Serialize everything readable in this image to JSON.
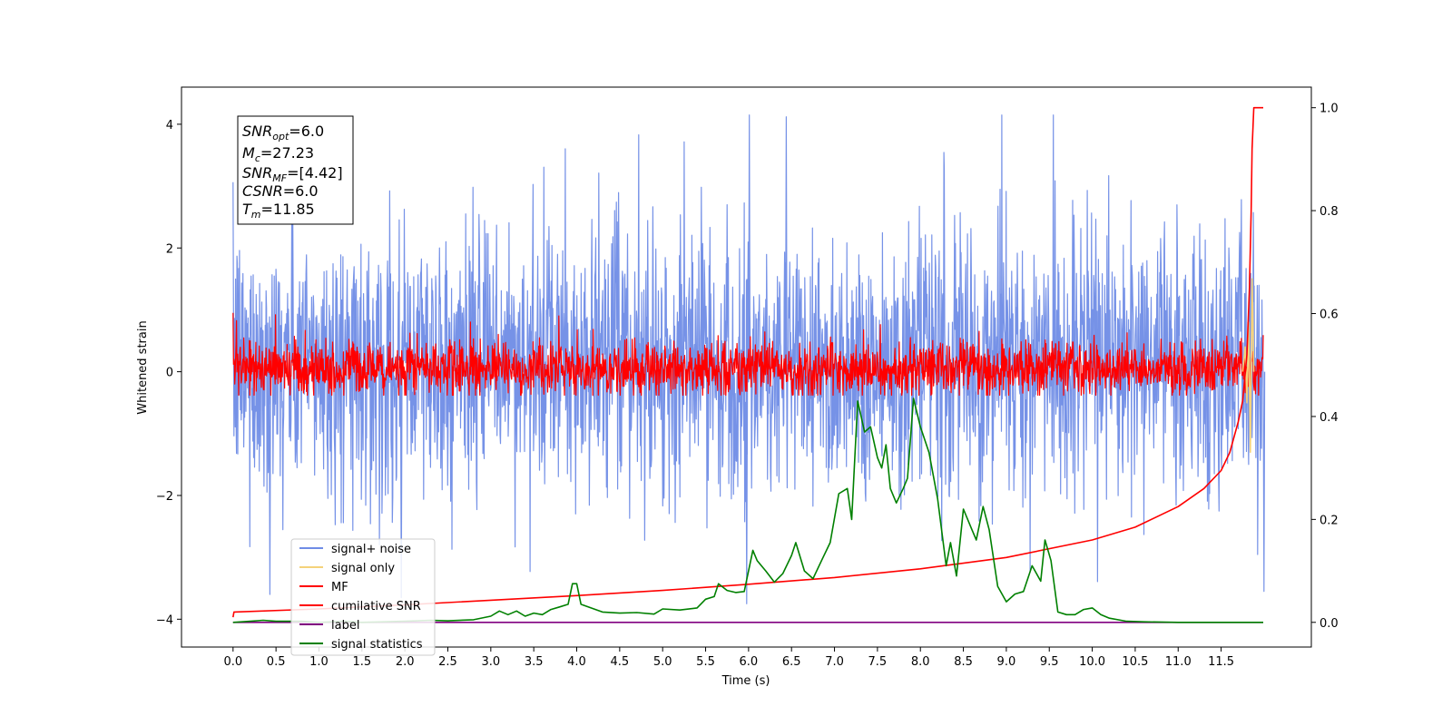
{
  "chart_data": {
    "type": "line",
    "xlabel": "Time (s)",
    "ylabel": "Whitened strain",
    "xlim": [
      -0.6,
      12.55
    ],
    "ylim": [
      -4.45,
      4.6
    ],
    "y2lim": [
      -0.048,
      1.04
    ],
    "x_ticks": [
      0.0,
      0.5,
      1.0,
      1.5,
      2.0,
      2.5,
      3.0,
      3.5,
      4.0,
      4.5,
      5.0,
      5.5,
      6.0,
      6.5,
      7.0,
      7.5,
      8.0,
      8.5,
      9.0,
      9.5,
      10.0,
      10.5,
      11.0,
      11.5
    ],
    "x_tick_labels": [
      "0.0",
      "0.5",
      "1.0",
      "1.5",
      "2.0",
      "2.5",
      "3.0",
      "3.5",
      "4.0",
      "4.5",
      "5.0",
      "5.5",
      "6.0",
      "6.5",
      "7.0",
      "7.5",
      "8.0",
      "8.5",
      "9.0",
      "9.5",
      "10.0",
      "10.5",
      "11.0",
      "11.5"
    ],
    "y_ticks": [
      -4,
      -2,
      0,
      2,
      4
    ],
    "y_tick_labels": [
      "−4",
      "−2",
      "0",
      "2",
      "4"
    ],
    "y2_ticks": [
      0.0,
      0.2,
      0.4,
      0.6,
      0.8,
      1.0
    ],
    "y2_tick_labels": [
      "0.0",
      "0.2",
      "0.4",
      "0.6",
      "0.8",
      "1.0"
    ],
    "grid": false,
    "legend_position": "lower-left",
    "annotation": {
      "lines": [
        {
          "base": "SNR",
          "sub": "opt",
          "value": "=6.0"
        },
        {
          "base": "M",
          "sub": "c",
          "value": "=27.23"
        },
        {
          "base": "SNR",
          "sub": "MF",
          "value": "=[4.42]"
        },
        {
          "base": "CSNR",
          "sub": "",
          "value": "=6.0"
        },
        {
          "base": "T",
          "sub": "m",
          "value": "=11.85"
        }
      ]
    },
    "series": [
      {
        "name": "signal+ noise",
        "color": "#6f8ce6",
        "axis": "left",
        "x_range": [
          0.0,
          11.99
        ],
        "typical_range": [
          -1.5,
          1.8
        ],
        "extremes": [
          [
            0.42,
            -3.6
          ],
          [
            1.95,
            -3.65
          ],
          [
            6.0,
            4.15
          ],
          [
            6.43,
            4.12
          ],
          [
            5.97,
            -3.75
          ],
          [
            11.99,
            -3.55
          ]
        ]
      },
      {
        "name": "signal only",
        "color": "#f5d27a",
        "axis": "left",
        "x": [
          11.75,
          11.78,
          11.8,
          11.82,
          11.84,
          11.86,
          11.88
        ],
        "y": [
          0.0,
          0.4,
          -0.5,
          0.8,
          -1.3,
          1.5,
          0.0
        ]
      },
      {
        "name": "MF",
        "color": "#ff0000",
        "axis": "left",
        "x_range": [
          0.0,
          11.99
        ],
        "typical_range": [
          -0.35,
          0.55
        ],
        "start_value": 0.95
      },
      {
        "name": "cumilative SNR",
        "color": "#ff0000",
        "axis": "right",
        "x": [
          0.0,
          0.01,
          1.0,
          2.0,
          3.0,
          4.0,
          5.0,
          6.0,
          7.0,
          8.0,
          9.0,
          10.0,
          10.5,
          11.0,
          11.3,
          11.5,
          11.6,
          11.7,
          11.75,
          11.8,
          11.83,
          11.85,
          11.86,
          11.88,
          11.9,
          11.95,
          11.99
        ],
        "y": [
          0.01,
          0.02,
          0.026,
          0.034,
          0.043,
          0.052,
          0.062,
          0.074,
          0.087,
          0.104,
          0.126,
          0.16,
          0.185,
          0.225,
          0.26,
          0.295,
          0.33,
          0.39,
          0.43,
          0.52,
          0.65,
          0.8,
          0.92,
          1.0,
          1.0,
          1.0,
          1.0
        ]
      },
      {
        "name": "label",
        "color": "#800080",
        "axis": "right",
        "x": [
          0.0,
          11.99
        ],
        "y": [
          0.0,
          0.0
        ]
      },
      {
        "name": "signal statistics",
        "color": "#008000",
        "axis": "right",
        "x": [
          0.0,
          0.2,
          0.35,
          0.5,
          0.8,
          1.0,
          1.3,
          1.5,
          2.0,
          2.3,
          2.5,
          2.8,
          3.0,
          3.1,
          3.2,
          3.3,
          3.4,
          3.5,
          3.6,
          3.7,
          3.8,
          3.9,
          3.95,
          4.0,
          4.05,
          4.1,
          4.3,
          4.5,
          4.7,
          4.9,
          5.0,
          5.2,
          5.4,
          5.5,
          5.6,
          5.65,
          5.75,
          5.85,
          5.95,
          6.05,
          6.1,
          6.2,
          6.3,
          6.4,
          6.5,
          6.55,
          6.65,
          6.75,
          6.85,
          6.95,
          7.05,
          7.15,
          7.2,
          7.27,
          7.35,
          7.42,
          7.5,
          7.55,
          7.6,
          7.65,
          7.72,
          7.8,
          7.85,
          7.92,
          8.0,
          8.1,
          8.2,
          8.3,
          8.35,
          8.42,
          8.5,
          8.6,
          8.65,
          8.73,
          8.8,
          8.9,
          9.0,
          9.1,
          9.2,
          9.3,
          9.4,
          9.45,
          9.52,
          9.6,
          9.7,
          9.8,
          9.9,
          10.0,
          10.1,
          10.2,
          10.4,
          10.6,
          11.0,
          11.99
        ],
        "y": [
          0.0,
          0.002,
          0.004,
          0.002,
          0.002,
          0.0,
          0.002,
          0.0,
          0.002,
          0.004,
          0.003,
          0.005,
          0.012,
          0.022,
          0.015,
          0.022,
          0.012,
          0.018,
          0.015,
          0.025,
          0.03,
          0.035,
          0.075,
          0.075,
          0.035,
          0.032,
          0.02,
          0.018,
          0.019,
          0.016,
          0.026,
          0.024,
          0.028,
          0.045,
          0.05,
          0.075,
          0.062,
          0.058,
          0.06,
          0.14,
          0.12,
          0.1,
          0.078,
          0.095,
          0.13,
          0.155,
          0.1,
          0.085,
          0.12,
          0.155,
          0.25,
          0.26,
          0.2,
          0.43,
          0.37,
          0.38,
          0.32,
          0.3,
          0.345,
          0.26,
          0.232,
          0.26,
          0.28,
          0.435,
          0.38,
          0.33,
          0.24,
          0.11,
          0.155,
          0.09,
          0.22,
          0.18,
          0.16,
          0.225,
          0.18,
          0.07,
          0.04,
          0.055,
          0.06,
          0.11,
          0.08,
          0.16,
          0.12,
          0.02,
          0.015,
          0.015,
          0.025,
          0.028,
          0.015,
          0.008,
          0.002,
          0.001,
          0.0,
          0.0
        ]
      }
    ]
  }
}
